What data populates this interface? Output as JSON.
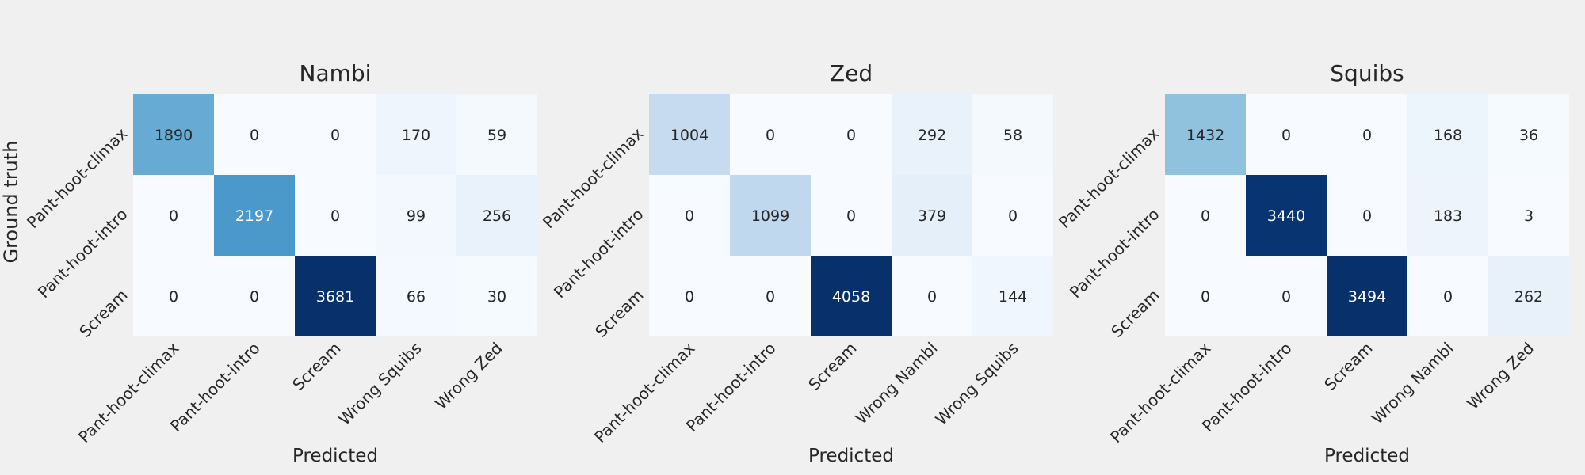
{
  "figure": {
    "background": "#f0f0f0",
    "colormap": "Blues",
    "ylabel": "Ground truth"
  },
  "chart_data": [
    {
      "type": "heatmap",
      "title": "Nambi",
      "xlabel": "Predicted",
      "ylabel": "Ground truth",
      "rows": [
        "Pant-hoot-climax",
        "Pant-hoot-intro",
        "Scream"
      ],
      "columns": [
        "Pant-hoot-climax",
        "Pant-hoot-intro",
        "Scream",
        "Wrong Squibs",
        "Wrong Zed"
      ],
      "values": [
        [
          1890,
          0,
          0,
          170,
          59
        ],
        [
          0,
          2197,
          0,
          99,
          256
        ],
        [
          0,
          0,
          3681,
          66,
          30
        ]
      ],
      "grid": false
    },
    {
      "type": "heatmap",
      "title": "Zed",
      "xlabel": "Predicted",
      "ylabel": "",
      "rows": [
        "Pant-hoot-climax",
        "Pant-hoot-intro",
        "Scream"
      ],
      "columns": [
        "Pant-hoot-climax",
        "Pant-hoot-intro",
        "Scream",
        "Wrong Nambi",
        "Wrong Squibs"
      ],
      "values": [
        [
          1004,
          0,
          0,
          292,
          58
        ],
        [
          0,
          1099,
          0,
          379,
          0
        ],
        [
          0,
          0,
          4058,
          0,
          144
        ]
      ],
      "grid": false
    },
    {
      "type": "heatmap",
      "title": "Squibs",
      "xlabel": "Predicted",
      "ylabel": "",
      "rows": [
        "Pant-hoot-climax",
        "Pant-hoot-intro",
        "Scream"
      ],
      "columns": [
        "Pant-hoot-climax",
        "Pant-hoot-intro",
        "Scream",
        "Wrong Nambi",
        "Wrong Zed"
      ],
      "values": [
        [
          1432,
          0,
          0,
          168,
          36
        ],
        [
          0,
          3440,
          0,
          183,
          3
        ],
        [
          0,
          0,
          3494,
          0,
          262
        ]
      ],
      "grid": false
    }
  ]
}
